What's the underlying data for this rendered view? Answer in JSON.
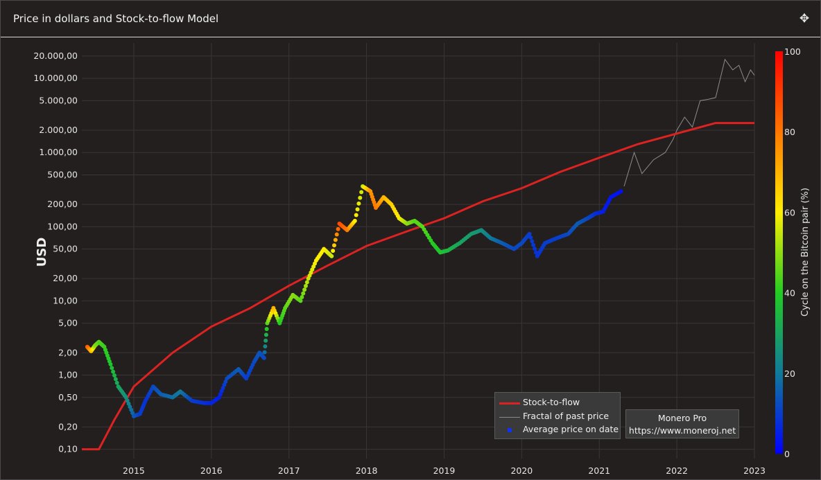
{
  "header": {
    "title": "Price in dollars and Stock-to-flow Model",
    "move_icon": "move-icon"
  },
  "credit": {
    "line1": "Monero Pro",
    "line2": "https://www.moneroj.net"
  },
  "chart_data": {
    "type": "scatter",
    "ylabel": "USD",
    "y_scale": "log",
    "ylim": [
      0.075,
      30000
    ],
    "xlim": [
      2014.33,
      2023.0
    ],
    "x_ticks": [
      "2015",
      "2016",
      "2017",
      "2018",
      "2019",
      "2020",
      "2021",
      "2022",
      "2023"
    ],
    "y_ticks": [
      {
        "v": 0.1,
        "label": "0,10"
      },
      {
        "v": 0.2,
        "label": "0,20"
      },
      {
        "v": 0.5,
        "label": "0,50"
      },
      {
        "v": 1,
        "label": "1,00"
      },
      {
        "v": 2,
        "label": "2,00"
      },
      {
        "v": 5,
        "label": "5,00"
      },
      {
        "v": 10,
        "label": "10,00"
      },
      {
        "v": 20,
        "label": "20,00"
      },
      {
        "v": 50,
        "label": "50,00"
      },
      {
        "v": 100,
        "label": "100,00"
      },
      {
        "v": 200,
        "label": "200,00"
      },
      {
        "v": 500,
        "label": "500,00"
      },
      {
        "v": 1000,
        "label": "1.000,00"
      },
      {
        "v": 2000,
        "label": "2.000,00"
      },
      {
        "v": 5000,
        "label": "5.000,00"
      },
      {
        "v": 10000,
        "label": "10.000,00"
      },
      {
        "v": 20000,
        "label": "20.000,00"
      }
    ],
    "colorbar": {
      "label": "Cycle on the Bitcoin pair (%)",
      "range": [
        0,
        100
      ],
      "ticks": [
        0,
        20,
        40,
        60,
        80,
        100
      ],
      "colors": [
        "#0000ff",
        "#117a9a",
        "#22cc22",
        "#ffee00",
        "#ff7700",
        "#ff0000"
      ]
    },
    "legend": [
      "Stock-to-flow",
      "Fractal of past price",
      "Average price on date"
    ],
    "series": [
      {
        "name": "Stock-to-flow",
        "color": "#dd2222",
        "points": [
          [
            2014.33,
            0.1
          ],
          [
            2014.55,
            0.1
          ],
          [
            2014.75,
            0.25
          ],
          [
            2015.0,
            0.7
          ],
          [
            2015.5,
            2.0
          ],
          [
            2016.0,
            4.5
          ],
          [
            2016.5,
            8.0
          ],
          [
            2017.0,
            16
          ],
          [
            2017.5,
            30
          ],
          [
            2018.0,
            55
          ],
          [
            2018.5,
            85
          ],
          [
            2019.0,
            130
          ],
          [
            2019.5,
            220
          ],
          [
            2020.0,
            330
          ],
          [
            2020.5,
            550
          ],
          [
            2021.0,
            850
          ],
          [
            2021.5,
            1300
          ],
          [
            2022.0,
            1800
          ],
          [
            2022.5,
            2500
          ],
          [
            2023.0,
            2500
          ]
        ]
      },
      {
        "name": "Fractal of past price",
        "color": "#8c8c8c",
        "points": [
          [
            2021.32,
            350
          ],
          [
            2021.45,
            1000
          ],
          [
            2021.55,
            520
          ],
          [
            2021.7,
            800
          ],
          [
            2021.85,
            1000
          ],
          [
            2021.95,
            1500
          ],
          [
            2022.0,
            2000
          ],
          [
            2022.1,
            3000
          ],
          [
            2022.2,
            2200
          ],
          [
            2022.3,
            5000
          ],
          [
            2022.4,
            5200
          ],
          [
            2022.5,
            5500
          ],
          [
            2022.62,
            18000
          ],
          [
            2022.72,
            13000
          ],
          [
            2022.8,
            15000
          ],
          [
            2022.88,
            9000
          ],
          [
            2022.95,
            13000
          ],
          [
            2023.0,
            11000
          ]
        ]
      },
      {
        "name": "Average price on date",
        "points": [
          [
            2014.4,
            2.4,
            85
          ],
          [
            2014.45,
            2.1,
            70
          ],
          [
            2014.5,
            2.5,
            50
          ],
          [
            2014.55,
            2.8,
            45
          ],
          [
            2014.62,
            2.4,
            42
          ],
          [
            2014.7,
            1.4,
            38
          ],
          [
            2014.8,
            0.7,
            30
          ],
          [
            2014.9,
            0.5,
            25
          ],
          [
            2015.0,
            0.28,
            15
          ],
          [
            2015.08,
            0.3,
            10
          ],
          [
            2015.15,
            0.45,
            8
          ],
          [
            2015.25,
            0.7,
            12
          ],
          [
            2015.35,
            0.55,
            15
          ],
          [
            2015.5,
            0.5,
            18
          ],
          [
            2015.6,
            0.6,
            20
          ],
          [
            2015.75,
            0.45,
            10
          ],
          [
            2015.9,
            0.42,
            8
          ],
          [
            2016.0,
            0.42,
            6
          ],
          [
            2016.1,
            0.5,
            5
          ],
          [
            2016.2,
            0.9,
            12
          ],
          [
            2016.35,
            1.2,
            15
          ],
          [
            2016.45,
            0.9,
            10
          ],
          [
            2016.55,
            1.5,
            12
          ],
          [
            2016.62,
            2.0,
            14
          ],
          [
            2016.68,
            1.7,
            12
          ],
          [
            2016.72,
            5.0,
            45
          ],
          [
            2016.8,
            8,
            70
          ],
          [
            2016.88,
            5,
            40
          ],
          [
            2016.95,
            8,
            45
          ],
          [
            2017.05,
            12,
            50
          ],
          [
            2017.15,
            10,
            45
          ],
          [
            2017.25,
            20,
            55
          ],
          [
            2017.35,
            35,
            60
          ],
          [
            2017.45,
            50,
            60
          ],
          [
            2017.55,
            40,
            55
          ],
          [
            2017.65,
            110,
            88
          ],
          [
            2017.75,
            90,
            80
          ],
          [
            2017.85,
            120,
            60
          ],
          [
            2017.95,
            350,
            55
          ],
          [
            2018.05,
            300,
            75
          ],
          [
            2018.12,
            180,
            80
          ],
          [
            2018.22,
            250,
            70
          ],
          [
            2018.32,
            200,
            65
          ],
          [
            2018.42,
            130,
            60
          ],
          [
            2018.52,
            110,
            50
          ],
          [
            2018.62,
            120,
            45
          ],
          [
            2018.72,
            100,
            45
          ],
          [
            2018.85,
            60,
            40
          ],
          [
            2018.95,
            45,
            38
          ],
          [
            2019.05,
            48,
            35
          ],
          [
            2019.2,
            60,
            30
          ],
          [
            2019.35,
            80,
            28
          ],
          [
            2019.48,
            90,
            25
          ],
          [
            2019.6,
            70,
            20
          ],
          [
            2019.75,
            60,
            15
          ],
          [
            2019.9,
            50,
            12
          ],
          [
            2020.0,
            60,
            12
          ],
          [
            2020.1,
            80,
            10
          ],
          [
            2020.2,
            40,
            8
          ],
          [
            2020.3,
            60,
            10
          ],
          [
            2020.45,
            70,
            10
          ],
          [
            2020.6,
            80,
            12
          ],
          [
            2020.72,
            110,
            15
          ],
          [
            2020.85,
            130,
            12
          ],
          [
            2020.95,
            150,
            8
          ],
          [
            2021.05,
            160,
            5
          ],
          [
            2021.15,
            250,
            4
          ],
          [
            2021.28,
            300,
            3
          ]
        ]
      }
    ]
  }
}
